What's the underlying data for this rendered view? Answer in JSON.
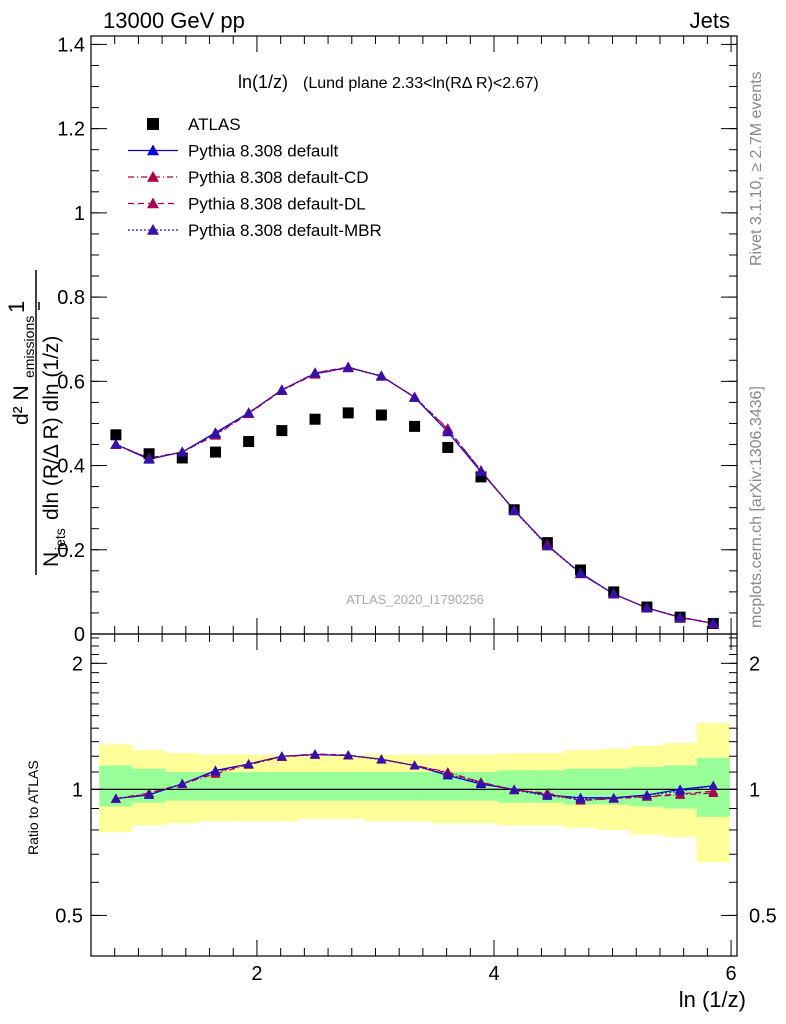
{
  "header": {
    "left": "13000 GeV pp",
    "right": "Jets"
  },
  "annotation_title": "ln(1/z)",
  "annotation_subtitle": "(Lund plane 2.33<ln(RΔ R)<2.67)",
  "watermark": "ATLAS_2020_I1790256",
  "side_labels": {
    "rivet": "Rivet 3.1.10, ≥ 2.7M events",
    "mcplots": "mcplots.cern.ch [arXiv:1306.3436]"
  },
  "upper_ylabel": {
    "numerator": "d² N",
    "numerator_sub": "emissions",
    "denominator": "N",
    "denominator_sub": "jets",
    "denominator_rest": "dln (R/Δ R) dln (1/z)",
    "prefix": "1"
  },
  "lower_ylabel": "Ratio to ATLAS",
  "xlabel": "ln (1/z)",
  "colors": {
    "atlas": "#000000",
    "default": "#0000dd",
    "cd": "#aa0044",
    "dl": "#aa0055",
    "mbr": "#3311aa",
    "band_inner": "#99ff99",
    "band_outer": "#ffff99"
  },
  "chart_data": [
    {
      "type": "scatter",
      "xlim": [
        0.6,
        6.05
      ],
      "ylim": [
        0,
        1.42
      ],
      "y_ticks": [
        "0",
        "0.2",
        "0.4",
        "0.6",
        "0.8",
        "1",
        "1.2",
        "1.4"
      ],
      "x": [
        0.81,
        1.09,
        1.37,
        1.65,
        1.93,
        2.21,
        2.49,
        2.77,
        3.05,
        3.33,
        3.61,
        3.89,
        4.17,
        4.45,
        4.73,
        5.01,
        5.29,
        5.57,
        5.85
      ],
      "series": [
        {
          "name": "ATLAS",
          "marker": "square",
          "values": [
            0.473,
            0.428,
            0.418,
            0.432,
            0.457,
            0.483,
            0.51,
            0.525,
            0.52,
            0.493,
            0.443,
            0.373,
            0.295,
            0.217,
            0.152,
            0.1,
            0.064,
            0.04,
            0.025
          ]
        },
        {
          "name": "Pythia 8.308 default",
          "marker": "triangle",
          "line": "solid",
          "values": [
            0.45,
            0.415,
            0.432,
            0.478,
            0.525,
            0.58,
            0.618,
            0.633,
            0.612,
            0.562,
            0.48,
            0.385,
            0.295,
            0.21,
            0.145,
            0.095,
            0.062,
            0.04,
            0.025
          ]
        },
        {
          "name": "Pythia 8.308 default-CD",
          "marker": "triangle",
          "line": "dashdot",
          "values": [
            0.45,
            0.418,
            0.432,
            0.472,
            0.523,
            0.578,
            0.617,
            0.632,
            0.613,
            0.562,
            0.488,
            0.388,
            0.293,
            0.212,
            0.143,
            0.095,
            0.062,
            0.039,
            0.025
          ]
        },
        {
          "name": "Pythia 8.308 default-DL",
          "marker": "triangle",
          "line": "dash",
          "values": [
            0.45,
            0.417,
            0.432,
            0.474,
            0.524,
            0.579,
            0.62,
            0.634,
            0.612,
            0.563,
            0.486,
            0.388,
            0.294,
            0.212,
            0.143,
            0.095,
            0.062,
            0.039,
            0.025
          ]
        },
        {
          "name": "Pythia 8.308 default-MBR",
          "marker": "triangle",
          "line": "dot",
          "values": [
            0.451,
            0.416,
            0.432,
            0.476,
            0.525,
            0.579,
            0.62,
            0.633,
            0.613,
            0.562,
            0.481,
            0.386,
            0.293,
            0.209,
            0.144,
            0.095,
            0.062,
            0.04,
            0.026
          ]
        }
      ]
    },
    {
      "type": "line",
      "ylabel": "Ratio to ATLAS",
      "xlabel": "ln (1/z)",
      "xlim": [
        0.6,
        6.05
      ],
      "x_ticks": [
        "2",
        "4",
        "6"
      ],
      "y_ticks": [
        "0.5",
        "1",
        "2"
      ],
      "x": [
        0.81,
        1.09,
        1.37,
        1.65,
        1.93,
        2.21,
        2.49,
        2.77,
        3.05,
        3.33,
        3.61,
        3.89,
        4.17,
        4.45,
        4.73,
        5.01,
        5.29,
        5.57,
        5.85
      ],
      "band_inner": [
        [
          0.91,
          1.14
        ],
        [
          0.93,
          1.12
        ],
        [
          0.94,
          1.1
        ],
        [
          0.94,
          1.1
        ],
        [
          0.94,
          1.1
        ],
        [
          0.94,
          1.1
        ],
        [
          0.94,
          1.1
        ],
        [
          0.94,
          1.1
        ],
        [
          0.94,
          1.1
        ],
        [
          0.94,
          1.1
        ],
        [
          0.94,
          1.1
        ],
        [
          0.94,
          1.1
        ],
        [
          0.93,
          1.11
        ],
        [
          0.93,
          1.11
        ],
        [
          0.92,
          1.12
        ],
        [
          0.92,
          1.12
        ],
        [
          0.91,
          1.13
        ],
        [
          0.9,
          1.14
        ],
        [
          0.86,
          1.19
        ]
      ],
      "band_outer": [
        [
          0.79,
          1.28
        ],
        [
          0.82,
          1.24
        ],
        [
          0.83,
          1.22
        ],
        [
          0.84,
          1.21
        ],
        [
          0.84,
          1.21
        ],
        [
          0.84,
          1.21
        ],
        [
          0.85,
          1.2
        ],
        [
          0.85,
          1.2
        ],
        [
          0.84,
          1.21
        ],
        [
          0.84,
          1.21
        ],
        [
          0.83,
          1.21
        ],
        [
          0.83,
          1.21
        ],
        [
          0.82,
          1.22
        ],
        [
          0.82,
          1.22
        ],
        [
          0.81,
          1.24
        ],
        [
          0.8,
          1.25
        ],
        [
          0.78,
          1.27
        ],
        [
          0.77,
          1.29
        ],
        [
          0.67,
          1.44
        ]
      ],
      "series": [
        {
          "name": "Pythia 8.308 default",
          "values": [
            0.95,
            0.97,
            1.03,
            1.11,
            1.15,
            1.2,
            1.21,
            1.205,
            1.18,
            1.14,
            1.08,
            1.03,
            1.0,
            0.97,
            0.955,
            0.955,
            0.97,
            1.0,
            1.02
          ]
        },
        {
          "name": "Pythia 8.308 default-CD",
          "values": [
            0.95,
            0.98,
            1.03,
            1.09,
            1.145,
            1.195,
            1.21,
            1.205,
            1.18,
            1.14,
            1.1,
            1.04,
            0.995,
            0.98,
            0.94,
            0.95,
            0.96,
            0.97,
            0.98
          ]
        },
        {
          "name": "Pythia 8.308 default-DL",
          "values": [
            0.95,
            0.975,
            1.03,
            1.1,
            1.148,
            1.198,
            1.215,
            1.208,
            1.178,
            1.142,
            1.095,
            1.04,
            0.997,
            0.976,
            0.942,
            0.952,
            0.962,
            0.975,
            0.99
          ]
        },
        {
          "name": "Pythia 8.308 default-MBR",
          "values": [
            0.952,
            0.972,
            1.032,
            1.105,
            1.15,
            1.2,
            1.212,
            1.206,
            1.179,
            1.14,
            1.085,
            1.035,
            0.996,
            0.965,
            0.948,
            0.952,
            0.968,
            0.99,
            1.02
          ]
        }
      ]
    }
  ]
}
